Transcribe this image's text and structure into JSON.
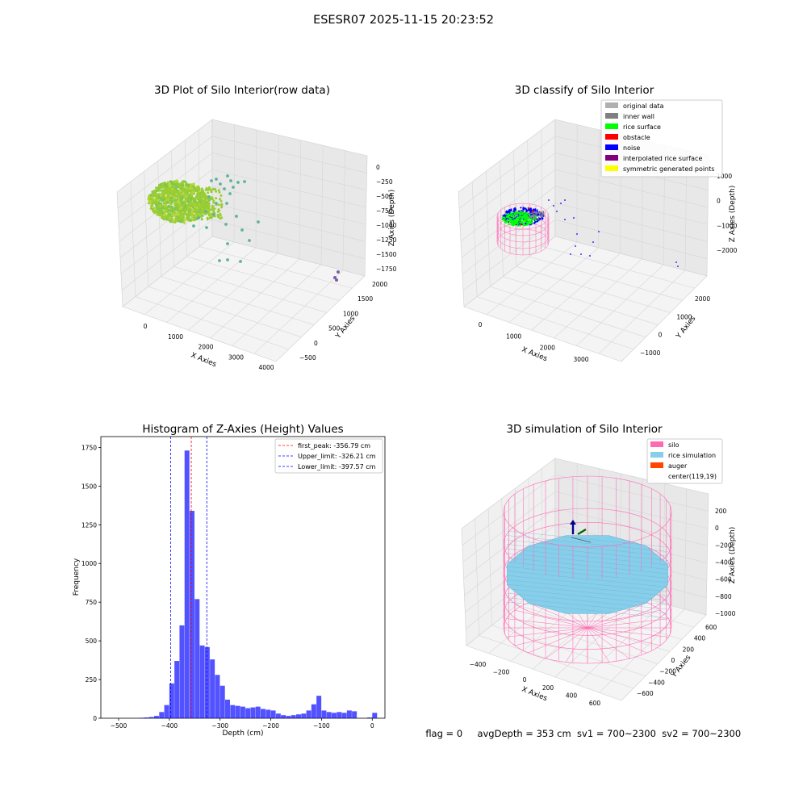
{
  "suptitle": "ESESR07 2025-11-15 20:23:52",
  "status_line": {
    "flag": "flag = 0",
    "avg_depth": "avgDepth = 353 cm",
    "sv1": "sv1 = 700~2300",
    "sv2": "sv2 = 700~2300"
  },
  "chart_data": [
    {
      "type": "scatter3d",
      "title": "3D Plot of Silo Interior(row data)",
      "xlabel": "X Axies",
      "ylabel": "Y Axies",
      "zlabel": "Z Axies (Depth)",
      "x_ticks": [
        "0",
        "1000",
        "2000",
        "3000",
        "4000"
      ],
      "y_ticks": [
        "−500",
        "0",
        "500",
        "1000",
        "1500",
        "2000"
      ],
      "z_ticks": [
        "0",
        "−250",
        "−500",
        "−750",
        "−1000",
        "−1250",
        "−1500",
        "−1750"
      ],
      "colors": {
        "main_cluster": "#9acd32",
        "stray": "#5fb39a",
        "far": "#7b5ea7"
      }
    },
    {
      "type": "scatter3d",
      "title": "3D classify of Silo Interior",
      "xlabel": "X Axies",
      "ylabel": "Y Axies",
      "zlabel": "Z Axies (Depth)",
      "x_ticks": [
        "0",
        "1000",
        "2000",
        "3000"
      ],
      "y_ticks": [
        "−1000",
        "0",
        "1000",
        "2000"
      ],
      "z_ticks": [
        "1000",
        "0",
        "−1000",
        "−2000"
      ],
      "legend": [
        {
          "label": "original data",
          "color": "#b0b0b0"
        },
        {
          "label": "inner wall",
          "color": "#808080"
        },
        {
          "label": "rice surface",
          "color": "#00ff00"
        },
        {
          "label": "obstacle",
          "color": "#ff0000"
        },
        {
          "label": "noise",
          "color": "#0000ff"
        },
        {
          "label": "interpolated rice surface",
          "color": "#800080"
        },
        {
          "label": "symmetric generated points",
          "color": "#ffff00"
        }
      ]
    },
    {
      "type": "bar",
      "title": "Histogram of Z-Axies (Height) Values",
      "xlabel": "Depth (cm)",
      "ylabel": "Frequency",
      "xlim": [
        -535,
        25
      ],
      "ylim": [
        0,
        1820
      ],
      "x_ticks": [
        -500,
        -400,
        -300,
        -200,
        -100,
        0
      ],
      "x_tick_labels": [
        "−500",
        "−400",
        "−300",
        "−200",
        "−100",
        "0"
      ],
      "y_ticks": [
        0,
        250,
        500,
        750,
        1000,
        1250,
        1500,
        1750
      ],
      "bin_width": 10,
      "bin_starts": [
        -460,
        -450,
        -440,
        -430,
        -420,
        -410,
        -400,
        -390,
        -380,
        -370,
        -360,
        -350,
        -340,
        -330,
        -320,
        -310,
        -300,
        -290,
        -280,
        -270,
        -260,
        -250,
        -240,
        -230,
        -220,
        -210,
        -200,
        -190,
        -180,
        -170,
        -160,
        -150,
        -140,
        -130,
        -120,
        -110,
        -100,
        -90,
        -80,
        -70,
        -60,
        -50,
        -40,
        -30,
        -20,
        -10,
        0
      ],
      "values": [
        3,
        5,
        8,
        15,
        40,
        85,
        225,
        370,
        600,
        1730,
        1340,
        770,
        470,
        460,
        380,
        280,
        210,
        120,
        85,
        80,
        75,
        65,
        70,
        75,
        60,
        55,
        50,
        30,
        20,
        15,
        20,
        25,
        30,
        50,
        90,
        145,
        50,
        40,
        35,
        40,
        35,
        50,
        45,
        0,
        0,
        5,
        35
      ],
      "color": "#0000ff",
      "vlines": [
        {
          "x": -356.79,
          "color": "#ff0000",
          "label": "first_peak: -356.79 cm"
        },
        {
          "x": -326.21,
          "color": "#0000ff",
          "label": "Upper_limit: -326.21 cm"
        },
        {
          "x": -397.57,
          "color": "#0000ff",
          "label": "Lower_limit: -397.57 cm"
        }
      ]
    },
    {
      "type": "surface3d",
      "title": "3D simulation of Silo Interior",
      "xlabel": "X Axies",
      "ylabel": "Y Axies",
      "zlabel": "Z Axies (Depth)",
      "x_ticks": [
        "−400",
        "−200",
        "0",
        "200",
        "400",
        "600"
      ],
      "y_ticks": [
        "−600",
        "−400",
        "−200",
        "0",
        "200",
        "400",
        "600"
      ],
      "z_ticks": [
        "200",
        "0",
        "−200",
        "−400",
        "−600",
        "−800",
        "−1000"
      ],
      "legend": [
        {
          "label": "silo",
          "color": "#ff69b4"
        },
        {
          "label": "rice simulation",
          "color": "#87ceeb"
        },
        {
          "label": "auger",
          "color": "#ff4500"
        },
        {
          "label": "center(119,19)",
          "color": ""
        }
      ]
    }
  ]
}
